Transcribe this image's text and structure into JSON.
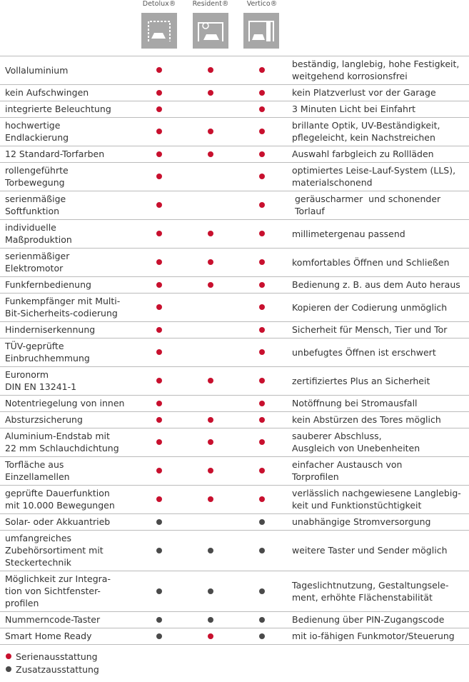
{
  "header": {
    "products": [
      "Detolux®",
      "Resident®",
      "Vertico®"
    ]
  },
  "legend": [
    {
      "label": "Serienausstattung",
      "color": "#c8102e"
    },
    {
      "label": "Zusatzausstattung",
      "color": "#4a4a4a"
    }
  ],
  "table": {
    "rows": [
      {
        "feature": [
          "Vollaluminium"
        ],
        "marks": [
          0,
          0,
          0
        ],
        "description": [
          "beständig, langlebig, hohe Festigkeit,",
          "weitgehend korrosionsfrei"
        ]
      },
      {
        "feature": [
          "kein Aufschwingen"
        ],
        "marks": [
          0,
          0,
          0
        ],
        "description": [
          "kein Platzverlust vor der Garage"
        ]
      },
      {
        "feature": [
          "integrierte Beleuchtung"
        ],
        "marks": [
          0,
          null,
          0
        ],
        "description": [
          "3 Minuten Licht bei Einfahrt"
        ]
      },
      {
        "feature": [
          "hochwertige",
          "Endlackierung"
        ],
        "marks": [
          0,
          0,
          0
        ],
        "description": [
          "brillante Optik, UV-Beständigkeit,",
          "pflegeleicht, kein Nachstreichen"
        ]
      },
      {
        "feature": [
          "12 Standard-Torfarben"
        ],
        "marks": [
          0,
          0,
          0
        ],
        "description": [
          "Auswahl farbgleich zu Rollläden"
        ]
      },
      {
        "feature": [
          "rollengeführte",
          "Torbewegung"
        ],
        "marks": [
          0,
          null,
          0
        ],
        "description": [
          "optimiertes Leise-Lauf-System (LLS),",
          "materialschonend"
        ]
      },
      {
        "feature": [
          "serienmäßige",
          "Softfunktion"
        ],
        "marks": [
          0,
          null,
          0
        ],
        "description": [
          " geräuscharmer  und schonender",
          " Torlauf"
        ]
      },
      {
        "feature": [
          "individuelle",
          "Maßproduktion"
        ],
        "marks": [
          0,
          0,
          0
        ],
        "description": [
          "millimetergenau passend"
        ]
      },
      {
        "feature": [
          "serienmäßiger",
          "Elektromotor"
        ],
        "marks": [
          0,
          0,
          0
        ],
        "description": [
          "komfortables Öffnen und Schließen"
        ]
      },
      {
        "feature": [
          "Funkfernbedienung"
        ],
        "marks": [
          0,
          0,
          0
        ],
        "description": [
          "Bedienung z. B. aus dem Auto heraus"
        ]
      },
      {
        "feature": [
          "Funkempfänger mit Multi-",
          "Bit-Sicherheits-codierung"
        ],
        "marks": [
          0,
          null,
          0
        ],
        "description": [
          "Kopieren der Codierung unmöglich"
        ]
      },
      {
        "feature": [
          "Hinderniserkennung"
        ],
        "marks": [
          0,
          null,
          0
        ],
        "description": [
          "Sicherheit für Mensch, Tier und Tor"
        ]
      },
      {
        "feature": [
          "TÜV-geprüfte",
          "Einbruchhemmung"
        ],
        "marks": [
          0,
          null,
          0
        ],
        "description": [
          "unbefugtes Öffnen ist erschwert"
        ]
      },
      {
        "feature": [
          "Euronorm",
          "DIN EN 13241-1"
        ],
        "marks": [
          0,
          0,
          0
        ],
        "description": [
          "zertifiziertes Plus an Sicherheit"
        ]
      },
      {
        "feature": [
          "Notentriegelung von innen"
        ],
        "marks": [
          0,
          null,
          0
        ],
        "description": [
          "Notöffnung bei Stromausfall"
        ]
      },
      {
        "feature": [
          "Absturzsicherung"
        ],
        "marks": [
          0,
          0,
          0
        ],
        "description": [
          "kein Abstürzen des Tores möglich"
        ]
      },
      {
        "feature": [
          "Aluminium-Endstab mit",
          "22 mm Schlauchdichtung"
        ],
        "marks": [
          0,
          0,
          0
        ],
        "description": [
          "sauberer Abschluss,",
          "Ausgleich von Unebenheiten"
        ]
      },
      {
        "feature": [
          "Torfläche aus",
          "Einzellamellen"
        ],
        "marks": [
          0,
          0,
          0
        ],
        "description": [
          "einfacher Austausch von",
          "Torprofilen"
        ]
      },
      {
        "feature": [
          "geprüfte Dauerfunktion",
          "mit 10.000 Bewegungen"
        ],
        "marks": [
          0,
          0,
          0
        ],
        "description": [
          "verlässlich nachgewiesene Langlebig-",
          "keit und Funktionstüchtigkeit"
        ]
      },
      {
        "feature": [
          "Solar- oder Akkuantrieb"
        ],
        "marks": [
          1,
          null,
          1
        ],
        "description": [
          "unabhängige Stromversorgung"
        ]
      },
      {
        "feature": [
          "umfangreiches",
          "Zubehörsortiment mit",
          "Steckertechnik"
        ],
        "marks": [
          1,
          1,
          1
        ],
        "description": [
          "weitere Taster und Sender möglich"
        ]
      },
      {
        "feature": [
          "Möglichkeit zur Integra-",
          "tion von Sichtfenster-",
          "profilen"
        ],
        "marks": [
          1,
          1,
          1
        ],
        "description": [
          "Tageslichtnutzung, Gestaltungsele-",
          "ment, erhöhte Flächenstabilität"
        ]
      },
      {
        "feature": [
          "Nummerncode-Taster"
        ],
        "marks": [
          1,
          1,
          1
        ],
        "description": [
          "Bedienung über PIN-Zugangscode"
        ]
      },
      {
        "feature": [
          "Smart Home Ready"
        ],
        "marks": [
          1,
          0,
          1
        ],
        "description": [
          "mit io-fähigen Funkmotor/Steuerung"
        ]
      }
    ]
  }
}
